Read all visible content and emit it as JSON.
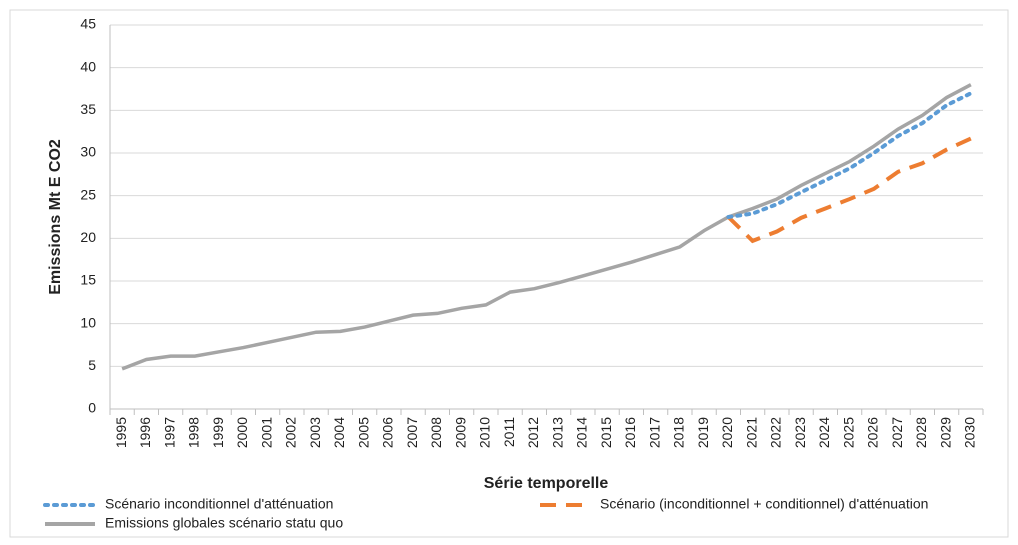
{
  "chart_data": {
    "type": "line",
    "x_label": "Série temporelle",
    "y_label": "Emissions Mt E CO2",
    "categories": [
      "1995",
      "1996",
      "1997",
      "1998",
      "1999",
      "2000",
      "2001",
      "2002",
      "2003",
      "2004",
      "2005",
      "2006",
      "2007",
      "2008",
      "2009",
      "2010",
      "2011",
      "2012",
      "2013",
      "2014",
      "2015",
      "2016",
      "2017",
      "2018",
      "2019",
      "2020",
      "2021",
      "2022",
      "2023",
      "2024",
      "2025",
      "2026",
      "2027",
      "2028",
      "2029",
      "2030"
    ],
    "series": [
      {
        "name": "Scénario inconditionnel d'atténuation",
        "color": "#5b9bd5",
        "style": "dotted",
        "values": [
          null,
          null,
          null,
          null,
          null,
          null,
          null,
          null,
          null,
          null,
          null,
          null,
          null,
          null,
          null,
          null,
          null,
          null,
          null,
          null,
          null,
          null,
          null,
          null,
          null,
          22.5,
          22.9,
          24.0,
          25.4,
          26.8,
          28.2,
          30.0,
          32.0,
          33.5,
          35.6,
          37.0
        ]
      },
      {
        "name": "Scénario (inconditionnel + conditionnel) d'atténuation",
        "color": "#ed7d31",
        "style": "dashed",
        "values": [
          null,
          null,
          null,
          null,
          null,
          null,
          null,
          null,
          null,
          null,
          null,
          null,
          null,
          null,
          null,
          null,
          null,
          null,
          null,
          null,
          null,
          null,
          null,
          null,
          null,
          22.5,
          19.7,
          20.8,
          22.4,
          23.5,
          24.6,
          25.8,
          27.8,
          28.8,
          30.4,
          31.7
        ]
      },
      {
        "name": "Emissions globales scénario statu quo",
        "color": "#a5a5a5",
        "style": "solid",
        "values": [
          4.7,
          5.8,
          6.2,
          6.2,
          6.7,
          7.2,
          7.8,
          8.4,
          9.0,
          9.1,
          9.6,
          10.3,
          11.0,
          11.2,
          11.8,
          12.2,
          13.7,
          14.1,
          14.8,
          15.6,
          16.4,
          17.2,
          18.1,
          19.0,
          20.9,
          22.5,
          23.5,
          24.6,
          26.2,
          27.6,
          29.0,
          30.8,
          32.8,
          34.4,
          36.5,
          38.0
        ]
      }
    ],
    "ylim": [
      0,
      45
    ],
    "yticks": [
      0,
      5,
      10,
      15,
      20,
      25,
      30,
      35,
      40,
      45
    ],
    "grid": true
  }
}
